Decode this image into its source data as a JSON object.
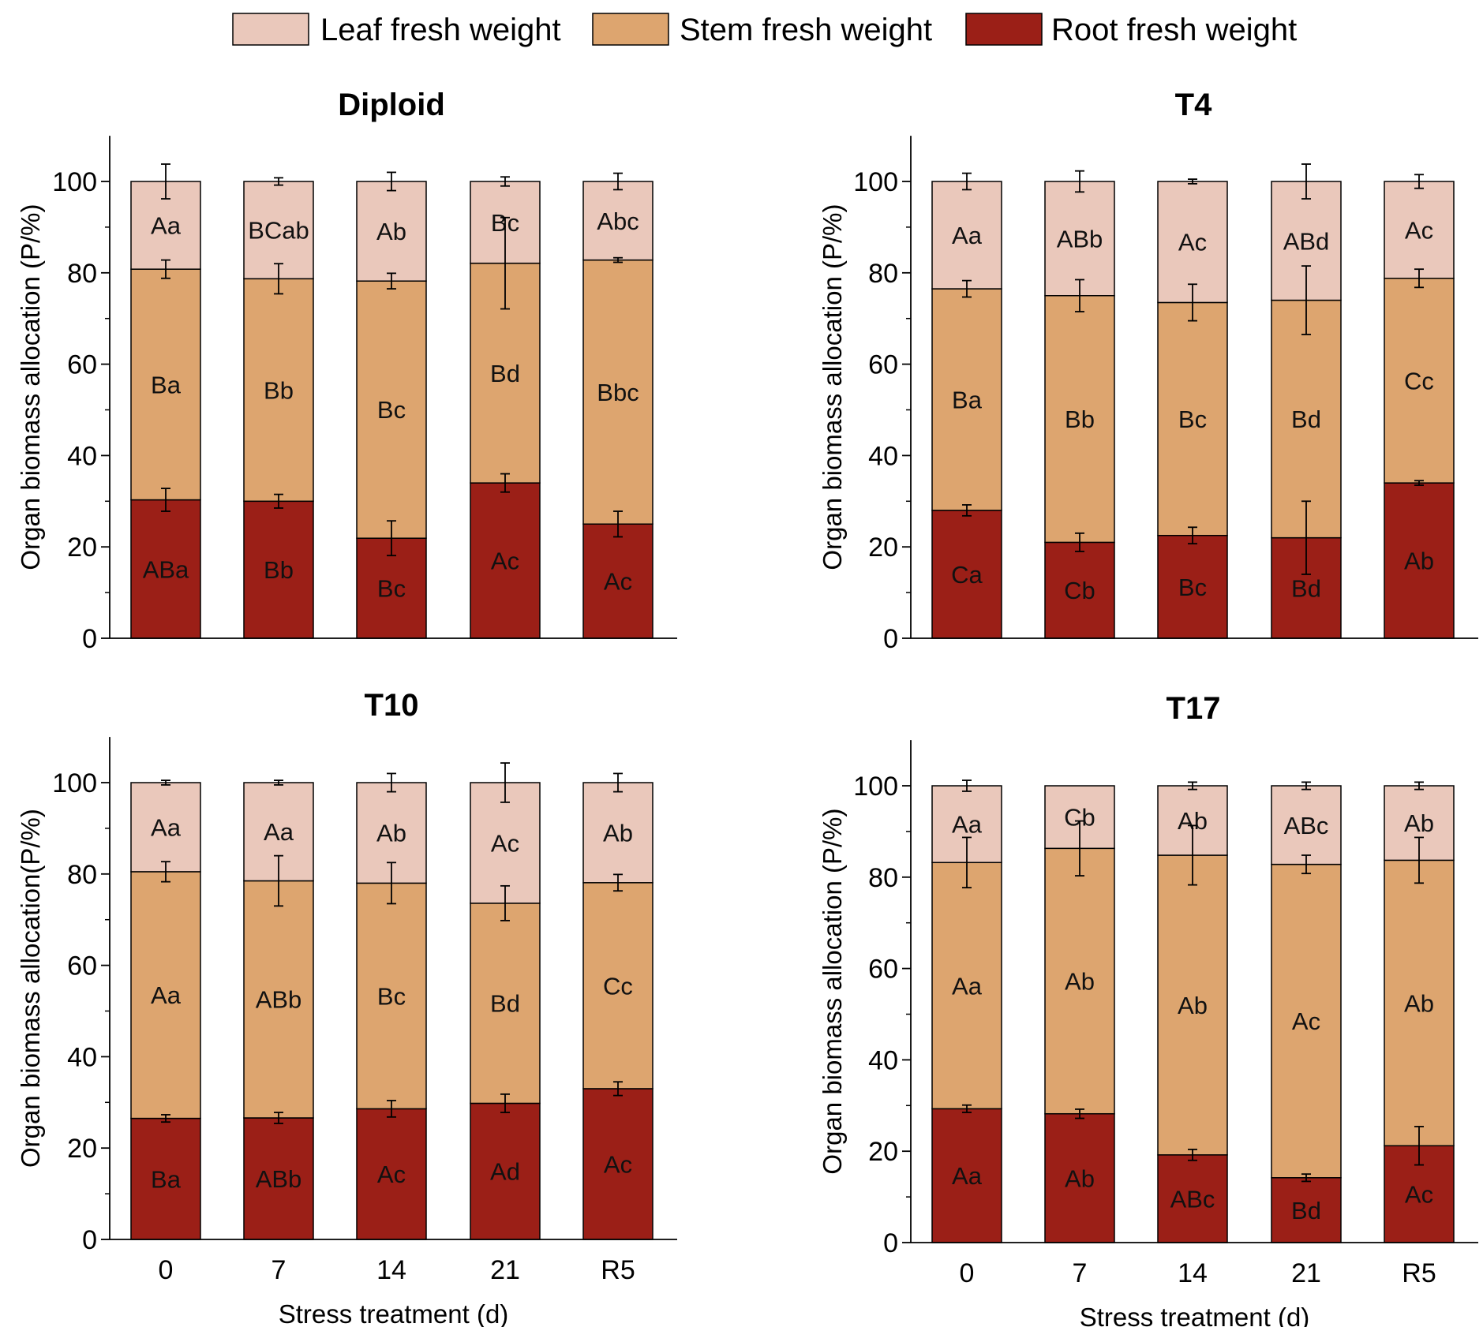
{
  "legend": [
    {
      "label": "Leaf fresh weight",
      "color": "#eac8bb"
    },
    {
      "label": "Stem fresh weight",
      "color": "#dda56f"
    },
    {
      "label": "Root fresh weight",
      "color": "#9b1f17"
    }
  ],
  "chart_data": [
    {
      "type": "bar",
      "stacked": true,
      "title": "Diploid",
      "ylabel": "Organ biomass allocation (P/%)",
      "xlabel": "",
      "ylim": [
        0,
        110
      ],
      "yticks": [
        0,
        20,
        40,
        60,
        80,
        100
      ],
      "categories": [
        "0",
        "7",
        "14",
        "21",
        "R5"
      ],
      "series": [
        {
          "name": "Root fresh weight",
          "values": [
            30.3,
            30.0,
            21.9,
            34.0,
            25.0
          ],
          "errors": [
            2.5,
            1.5,
            3.8,
            2.0,
            2.8
          ],
          "labels": [
            "ABa",
            "Bb",
            "Bc",
            "Ac",
            "Ac"
          ]
        },
        {
          "name": "Stem fresh weight",
          "values": [
            50.5,
            48.7,
            56.3,
            48.1,
            57.8
          ],
          "errors": [
            2.0,
            3.3,
            1.7,
            10.0,
            0.5
          ],
          "labels": [
            "Ba",
            "Bb",
            "Bc",
            "Bd",
            "Bbc"
          ]
        },
        {
          "name": "Leaf fresh weight",
          "values": [
            19.2,
            21.3,
            21.8,
            17.9,
            17.2
          ],
          "errors": [
            3.8,
            0.8,
            2.0,
            1.0,
            1.8
          ],
          "labels": [
            "Aa",
            "BCab",
            "Ab",
            "Bc",
            "Abc"
          ]
        }
      ]
    },
    {
      "type": "bar",
      "stacked": true,
      "title": "T4",
      "ylabel": "Organ biomass allocation (P/%)",
      "xlabel": "",
      "ylim": [
        0,
        110
      ],
      "yticks": [
        0,
        20,
        40,
        60,
        80,
        100
      ],
      "categories": [
        "0",
        "7",
        "14",
        "21",
        "R5"
      ],
      "series": [
        {
          "name": "Root fresh weight",
          "values": [
            28.0,
            21.0,
            22.5,
            22.0,
            34.0
          ],
          "errors": [
            1.2,
            2.0,
            1.8,
            8.0,
            0.5
          ],
          "labels": [
            "Ca",
            "Cb",
            "Bc",
            "Bd",
            "Ab"
          ]
        },
        {
          "name": "Stem fresh weight",
          "values": [
            48.5,
            54.0,
            51.0,
            52.0,
            44.8
          ],
          "errors": [
            1.8,
            3.5,
            4.0,
            7.5,
            2.0
          ],
          "labels": [
            "Ba",
            "Bb",
            "Bc",
            "Bd",
            "Cc"
          ]
        },
        {
          "name": "Leaf fresh weight",
          "values": [
            23.5,
            25.0,
            26.5,
            26.0,
            21.2
          ],
          "errors": [
            1.8,
            2.3,
            0.5,
            3.8,
            1.5
          ],
          "labels": [
            "Aa",
            "ABb",
            "Ac",
            "ABd",
            "Ac"
          ]
        }
      ]
    },
    {
      "type": "bar",
      "stacked": true,
      "title": "T10",
      "ylabel": "Organ biomass allocation(P/%)",
      "xlabel": "Stress treatment (d)",
      "ylim": [
        0,
        110
      ],
      "yticks": [
        0,
        20,
        40,
        60,
        80,
        100
      ],
      "categories": [
        "0",
        "7",
        "14",
        "21",
        "R5"
      ],
      "series": [
        {
          "name": "Root fresh weight",
          "values": [
            26.5,
            26.6,
            28.6,
            29.8,
            33.0
          ],
          "errors": [
            0.8,
            1.2,
            1.8,
            2.0,
            1.5
          ],
          "labels": [
            "Ba",
            "ABb",
            "Ac",
            "Ad",
            "Ac"
          ]
        },
        {
          "name": "Stem fresh weight",
          "values": [
            54.0,
            51.9,
            49.4,
            43.8,
            45.1
          ],
          "errors": [
            2.2,
            5.5,
            4.5,
            3.8,
            1.8
          ],
          "labels": [
            "Aa",
            "ABb",
            "Bc",
            "Bd",
            "Cc"
          ]
        },
        {
          "name": "Leaf fresh weight",
          "values": [
            19.5,
            21.5,
            22.0,
            26.4,
            21.9
          ],
          "errors": [
            0.5,
            0.5,
            2.0,
            4.3,
            2.0
          ],
          "labels": [
            "Aa",
            "Aa",
            "Ab",
            "Ac",
            "Ab"
          ]
        }
      ]
    },
    {
      "type": "bar",
      "stacked": true,
      "title": "T17",
      "ylabel": "Organ biomass allocation (P/%)",
      "xlabel": "Stress treatment (d)",
      "ylim": [
        0,
        110
      ],
      "yticks": [
        0,
        20,
        40,
        60,
        80,
        100
      ],
      "categories": [
        "0",
        "7",
        "14",
        "21",
        "R5"
      ],
      "series": [
        {
          "name": "Root fresh weight",
          "values": [
            29.3,
            28.2,
            19.2,
            14.2,
            21.2
          ],
          "errors": [
            0.8,
            1.0,
            1.2,
            0.8,
            4.2
          ],
          "labels": [
            "Aa",
            "Ab",
            "ABc",
            "Bd",
            "Ac"
          ]
        },
        {
          "name": "Stem fresh weight",
          "values": [
            53.9,
            58.1,
            65.6,
            68.6,
            62.5
          ],
          "errors": [
            5.5,
            6.0,
            6.5,
            2.0,
            5.0
          ],
          "labels": [
            "Aa",
            "Ab",
            "Ab",
            "Ac",
            "Ab"
          ]
        },
        {
          "name": "Leaf fresh weight",
          "values": [
            16.8,
            13.7,
            15.2,
            17.2,
            16.3
          ],
          "errors": [
            1.2,
            0,
            0.8,
            0.8,
            0.8
          ],
          "labels": [
            "Aa",
            "Cb",
            "Ab",
            "ABc",
            "Ab"
          ]
        }
      ]
    }
  ]
}
